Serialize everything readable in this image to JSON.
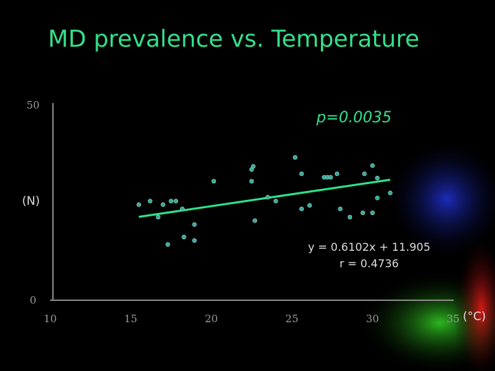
{
  "chart_data": {
    "type": "scatter",
    "title": "MD prevalence vs. Temperature",
    "y_label": "(N)",
    "x_label": "(°C)",
    "annotations": [
      "p=0.0035",
      "y = 0.6102x + 11.905",
      "r = 0.4736"
    ],
    "color": "#3aa898",
    "x": [
      15.5,
      16.2,
      16.7,
      17.0,
      17.3,
      17.5,
      17.8,
      18.2,
      18.3,
      18.95,
      18.95,
      20.15,
      22.5,
      22.6,
      22.5,
      22.7,
      23.5,
      24.0,
      25.2,
      25.6,
      25.6,
      26.1,
      27.0,
      27.2,
      27.4,
      27.8,
      28.0,
      28.6,
      29.4,
      29.5,
      30.0,
      30.0,
      30.3,
      30.3,
      31.1
    ],
    "values": [
      24.5,
      25.4,
      21.3,
      24.5,
      14.3,
      25.4,
      25.4,
      23.4,
      16.2,
      19.4,
      15.3,
      30.5,
      33.5,
      34.3,
      30.5,
      20.4,
      26.4,
      25.4,
      36.6,
      32.4,
      23.4,
      24.3,
      31.5,
      31.5,
      31.5,
      32.4,
      23.4,
      21.3,
      22.4,
      32.4,
      34.5,
      22.4,
      31.3,
      26.2,
      27.5
    ],
    "trendline": {
      "slope": 0.6102,
      "intercept": 11.905,
      "xrange": [
        15.5,
        31.1
      ],
      "color": "#2de38a"
    },
    "xlim": [
      10,
      35
    ],
    "xticks": [
      10,
      15,
      20,
      25,
      30,
      35
    ],
    "ylim": [
      0,
      50
    ],
    "yticks": [
      0,
      50
    ],
    "grid": false
  }
}
